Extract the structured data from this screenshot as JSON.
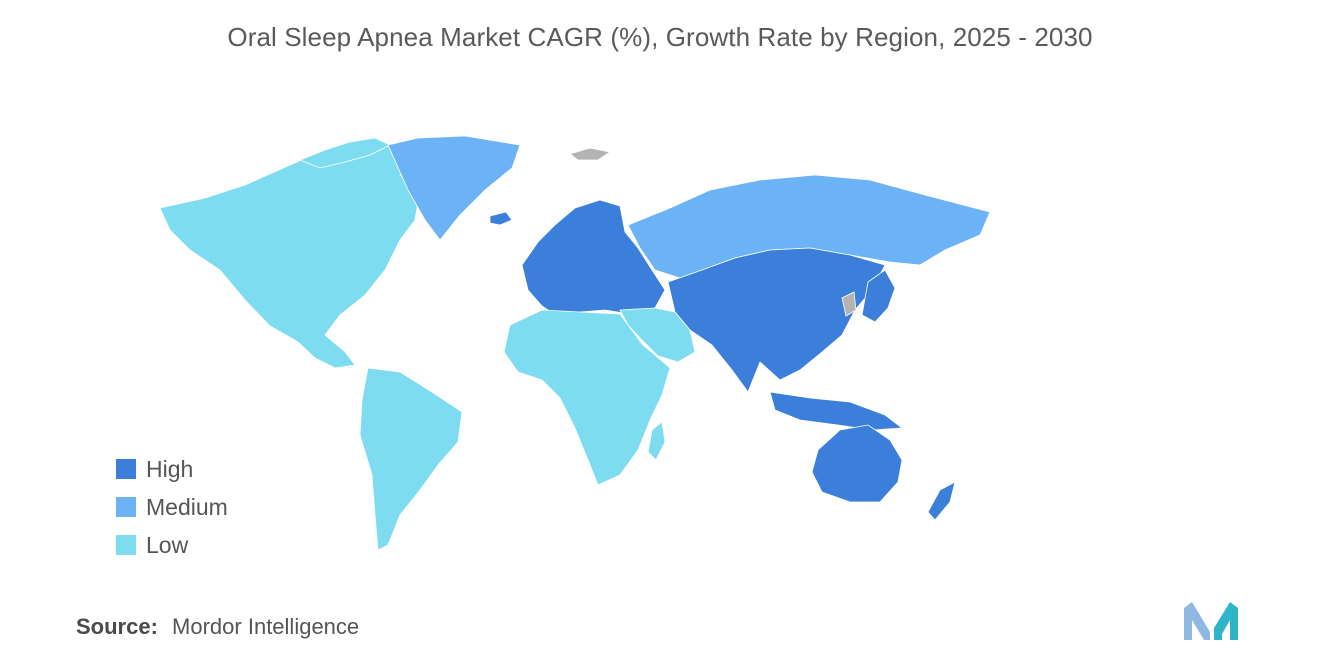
{
  "title": "Oral Sleep Apnea Market CAGR (%), Growth Rate by Region, 2025 - 2030",
  "colors": {
    "high": "#3b7fdb",
    "medium": "#6bb3f5",
    "low": "#7ddcef",
    "no_data": "#b4b4b4",
    "logo_left": "#8fb8e0",
    "logo_right": "#2fb5c9"
  },
  "legend": {
    "items": [
      {
        "label": "High",
        "level": "high"
      },
      {
        "label": "Medium",
        "level": "medium"
      },
      {
        "label": "Low",
        "level": "low"
      }
    ]
  },
  "regions": {
    "north_america": "low",
    "south_america": "low",
    "greenland": "medium",
    "europe": "high",
    "russia": "medium",
    "middle_east": "low",
    "africa": "low",
    "asia": "high",
    "japan": "high",
    "southeast_asia": "high",
    "australia": "high",
    "new_zealand": "high"
  },
  "source": {
    "label": "Source:",
    "value": "Mordor Intelligence"
  },
  "logo": {
    "icon": "mordor-intelligence-logo-icon"
  }
}
